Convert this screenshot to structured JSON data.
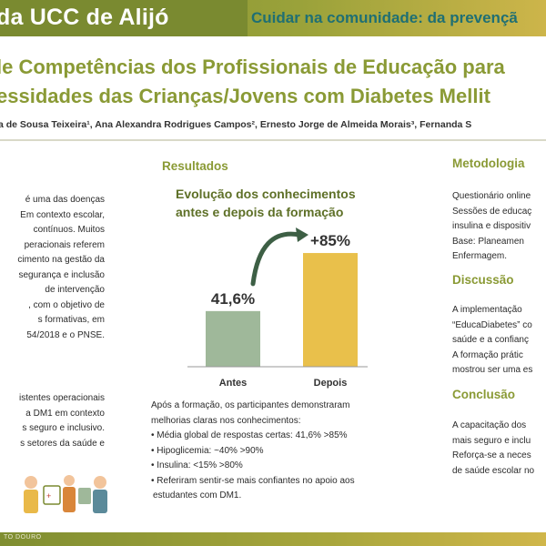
{
  "header": {
    "title": "da UCC de Alijó",
    "subtitle": "Cuidar na comunidade: da prevençã"
  },
  "poster_title": {
    "line1": "le Competências dos Profissionais de Educação para",
    "line2": "essidades das Crianças/Jovens com Diabetes Mellit"
  },
  "authors": "a de Sousa Teixeira¹, Ana Alexandra Rodrigues Campos², Ernesto Jorge de Almeida Morais³, Fernanda S",
  "left": {
    "lines": [
      "é uma das doenças",
      "Em contexto escolar,",
      "contínuos.   Muitos",
      "peracionais   referem",
      "cimento na gestão da",
      "segurança e inclusão",
      "de     intervenção",
      ", com o objetivo de",
      "s    formativas,    em",
      "54/2018 e o PNSE."
    ],
    "lines2": [
      "istentes operacionais",
      "a  DM1  em  contexto",
      "s seguro e inclusivo.",
      "s setores da saúde e"
    ]
  },
  "results": {
    "heading": "Resultados",
    "chart_title_line1": "Evolução dos conhecimentos",
    "chart_title_line2": "antes e depois da formação",
    "text_intro_line1": "Após  a  formação,  os  participantes  demonstraram",
    "text_intro_line2": "melhorias claras nos conhecimentos:",
    "bullets": [
      "• Média global de respostas certas: 41,6%      >85%",
      "• Hipoglicemia: ~40%       >90%",
      "• Insulina: <15%      >80%",
      "•  Referiram  sentir-se  mais  confiantes  no  apoio  aos"
    ],
    "bullet_cont": "estudantes com DM1."
  },
  "chart_data": {
    "type": "bar",
    "title": "Evolução dos conhecimentos antes e depois da formação",
    "categories": [
      "Antes",
      "Depois"
    ],
    "values": [
      41.6,
      85
    ],
    "value_labels": [
      "41,6%",
      "+85%"
    ],
    "colors": [
      "#9fb89a",
      "#e9c04b"
    ],
    "xlabel": "",
    "ylabel": "",
    "ylim": [
      0,
      100
    ],
    "grid": false,
    "arrow_color": "#3d5f45"
  },
  "methodology": {
    "heading": "Metodologia",
    "lines": [
      "Questionário online",
      "Sessões de educaç",
      "insulina e dispositiv",
      "Base:   Planeamen",
      "Enfermagem."
    ]
  },
  "discussion": {
    "heading": "Discussão",
    "lines": [
      "A   implementação",
      "“EducaDiabetes” co",
      "saúde e a confianç",
      "A formação prátic",
      "mostrou ser uma es"
    ]
  },
  "conclusion": {
    "heading": "Conclusão",
    "lines": [
      "A  capacitação  dos",
      "mais seguro e inclu",
      "Reforça-se a neces",
      "de saúde escolar no"
    ]
  },
  "footer": {
    "text": "TO DOURO"
  }
}
